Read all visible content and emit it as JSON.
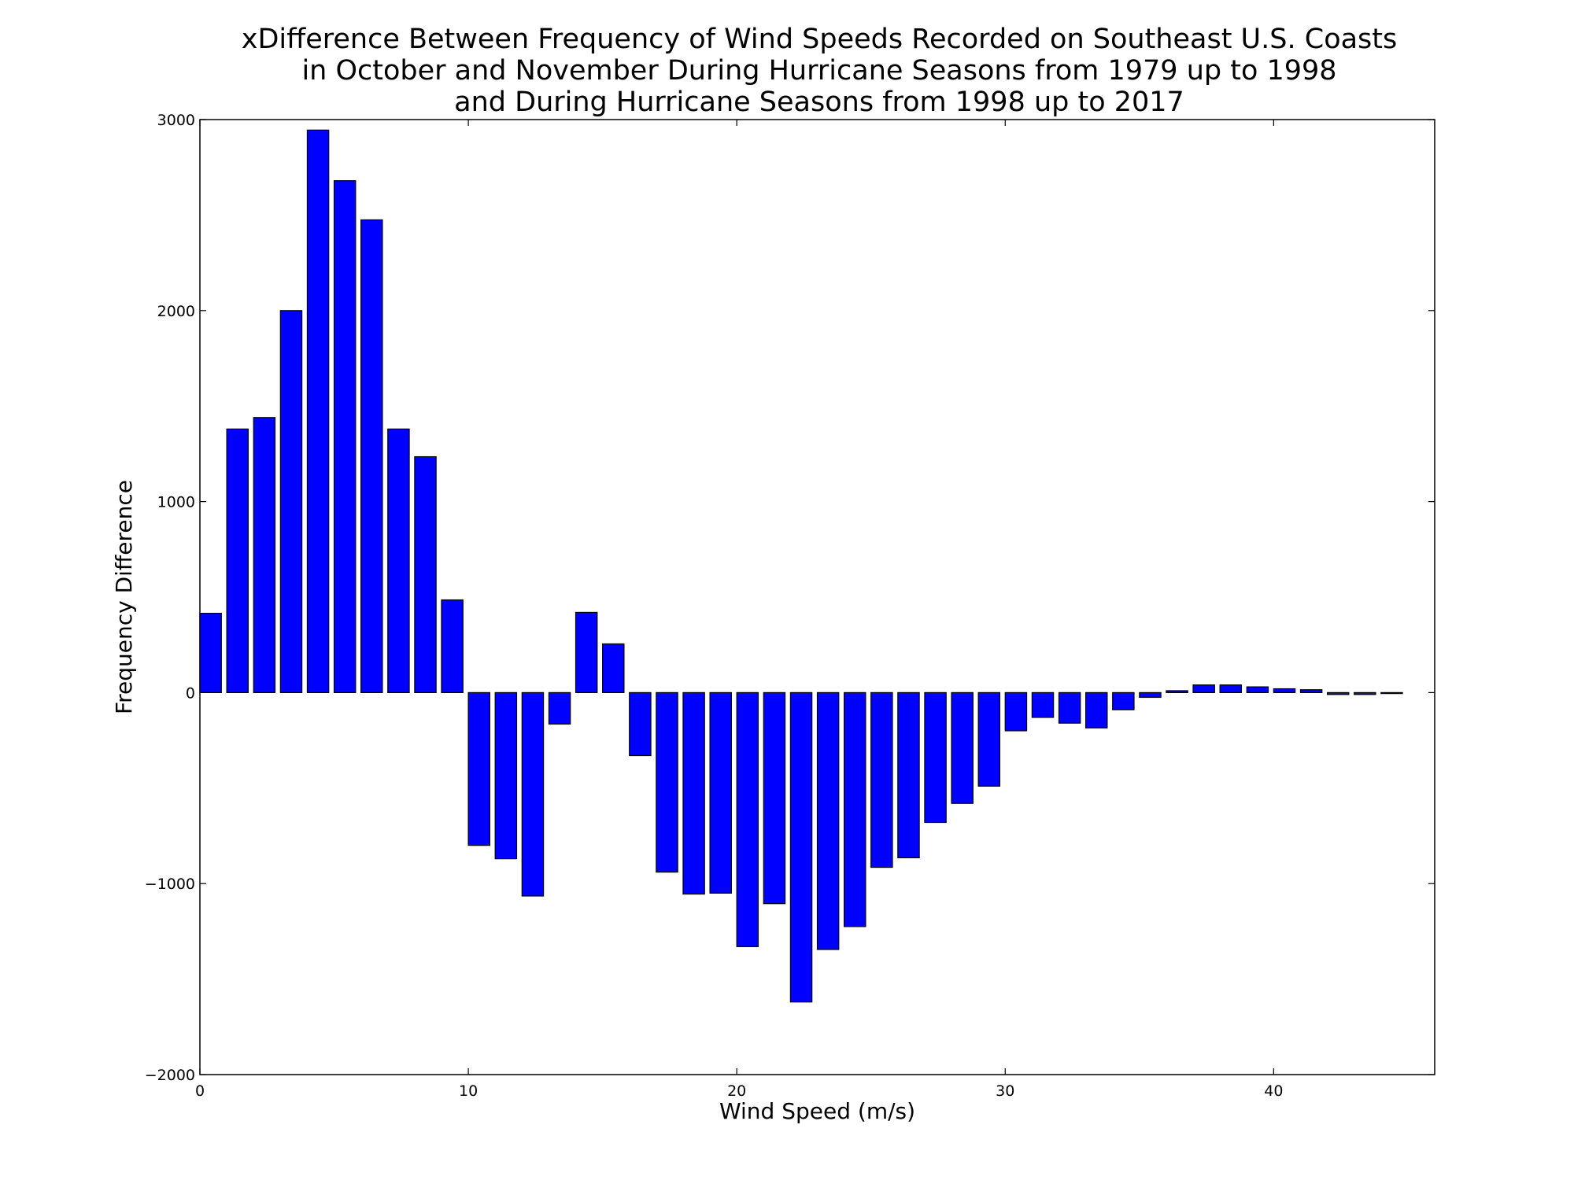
{
  "chart_data": {
    "type": "bar",
    "title_lines": [
      "xDifference Between Frequency of Wind Speeds Recorded on Southeast U.S. Coasts",
      "in October and November During Hurricane Seasons from 1979 up to 1998",
      "and During Hurricane Seasons from 1998 up to 2017"
    ],
    "xlabel": "Wind Speed (m/s)",
    "ylabel": "Frequency Difference",
    "xlim": [
      0,
      46
    ],
    "ylim": [
      -2000,
      3000
    ],
    "xticks": [
      0,
      10,
      20,
      30,
      40
    ],
    "yticks": [
      -2000,
      -1000,
      0,
      1000,
      2000,
      3000
    ],
    "bar_width": 0.8,
    "bar_color": "#0000ff",
    "grid": false,
    "x": [
      0,
      1,
      2,
      3,
      4,
      5,
      6,
      7,
      8,
      9,
      10,
      11,
      12,
      13,
      14,
      15,
      16,
      17,
      18,
      19,
      20,
      21,
      22,
      23,
      24,
      25,
      26,
      27,
      28,
      29,
      30,
      31,
      32,
      33,
      34,
      35,
      36,
      37,
      38,
      39,
      40,
      41,
      42,
      43,
      44
    ],
    "values": [
      415,
      1380,
      1440,
      2000,
      2945,
      2680,
      2475,
      1380,
      1235,
      485,
      -800,
      -870,
      -1065,
      -165,
      420,
      255,
      -330,
      -940,
      -1055,
      -1050,
      -1330,
      -1105,
      -1620,
      -1345,
      -1225,
      -915,
      -865,
      -680,
      -580,
      -490,
      -200,
      -130,
      -160,
      -185,
      -90,
      -25,
      10,
      40,
      40,
      30,
      20,
      15,
      -10,
      -10,
      -5
    ]
  }
}
